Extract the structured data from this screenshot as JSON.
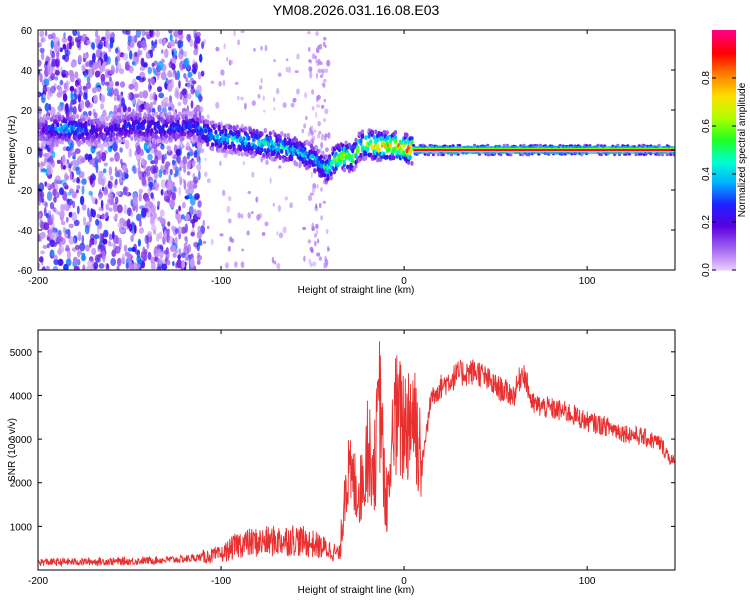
{
  "title": "YM08.2026.031.16.08.E03",
  "chart_data": [
    {
      "type": "heatmap",
      "name": "spectrogram",
      "xlabel": "Height of straight line (km)",
      "ylabel": "Frequency (Hz)",
      "xlim": [
        -200,
        148
      ],
      "ylim": [
        -60,
        60
      ],
      "xticks": [
        -200,
        -100,
        0,
        100
      ],
      "yticks": [
        -60,
        -40,
        -20,
        0,
        20,
        40,
        60
      ],
      "colorbar": {
        "label": "Normalized spectral amplitude",
        "range": [
          0.0,
          1.0
        ],
        "ticks": [
          0.0,
          0.2,
          0.4,
          0.6,
          0.8
        ],
        "colors": [
          "#e8ccff",
          "#a060f0",
          "#5a00e0",
          "#2020ff",
          "#00b0ff",
          "#00ffd0",
          "#20ff20",
          "#b0ff00",
          "#ffe000",
          "#ff8000",
          "#ff0000",
          "#ff0080"
        ]
      },
      "ridge": {
        "x": [
          -200,
          -185,
          -165,
          -150,
          -130,
          -115,
          -105,
          -90,
          -75,
          -60,
          -50,
          -42,
          -38,
          -33,
          -28,
          -24,
          -20,
          -15,
          -5,
          0,
          5,
          20,
          50,
          100,
          148
        ],
        "y": [
          10,
          11,
          9,
          12,
          11,
          12,
          7,
          5,
          3,
          0,
          -4,
          -10,
          -5,
          -3,
          -4,
          2,
          3,
          2,
          2,
          1,
          0,
          0,
          0,
          0,
          0
        ],
        "amp": [
          0.15,
          0.45,
          0.2,
          0.3,
          0.3,
          0.3,
          0.45,
          0.45,
          0.5,
          0.45,
          0.4,
          0.5,
          0.65,
          0.75,
          0.7,
          0.6,
          0.7,
          0.85,
          0.85,
          0.9,
          0.95,
          0.95,
          0.95,
          0.95,
          0.85
        ]
      },
      "noise_region_x": [
        -200,
        -110
      ]
    },
    {
      "type": "line",
      "name": "snr",
      "xlabel": "Height of straight line (km)",
      "ylabel": "SNR (10 * v/v)",
      "xlim": [
        -200,
        148
      ],
      "ylim": [
        0,
        5500
      ],
      "xticks": [
        -200,
        -100,
        0,
        100
      ],
      "yticks": [
        1000,
        2000,
        3000,
        4000,
        5000
      ],
      "color": "#e83030",
      "x": [
        -200,
        -150,
        -120,
        -100,
        -90,
        -75,
        -60,
        -50,
        -40,
        -35,
        -32,
        -28,
        -24,
        -20,
        -16,
        -13,
        -10,
        -5,
        0,
        5,
        10,
        15,
        20,
        30,
        40,
        50,
        60,
        65,
        70,
        80,
        90,
        100,
        110,
        120,
        130,
        140,
        148
      ],
      "y": [
        180,
        200,
        250,
        350,
        600,
        650,
        700,
        600,
        450,
        350,
        2200,
        2000,
        1800,
        2700,
        2400,
        4000,
        1200,
        3500,
        3300,
        3700,
        2500,
        4000,
        4200,
        4500,
        4550,
        4200,
        4000,
        4600,
        3800,
        3700,
        3600,
        3400,
        3300,
        3150,
        3050,
        2900,
        2400
      ]
    }
  ]
}
